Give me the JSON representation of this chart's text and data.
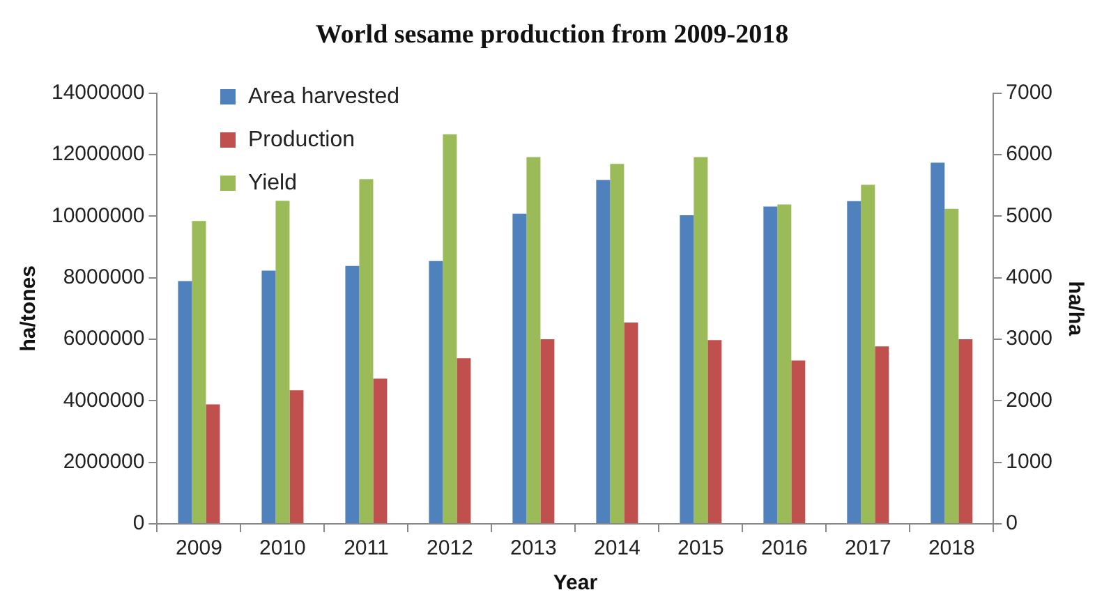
{
  "chart_data": {
    "type": "bar",
    "title": "World sesame production from 2009-2018",
    "xlabel": "Year",
    "ylabel": "ha/tones",
    "y2label": "ha/ha",
    "categories": [
      "2009",
      "2010",
      "2011",
      "2012",
      "2013",
      "2014",
      "2015",
      "2016",
      "2017",
      "2018"
    ],
    "series": [
      {
        "name": "Area harvested",
        "color": "#4f81bd",
        "values": [
          7890000,
          8230000,
          8380000,
          8540000,
          10080000,
          11180000,
          10030000,
          10310000,
          10490000,
          11740000
        ]
      },
      {
        "name": "Production",
        "color": "#c0504d",
        "values": [
          3880000,
          4340000,
          4720000,
          5380000,
          6000000,
          6540000,
          5970000,
          5310000,
          5770000,
          6000000
        ]
      },
      {
        "name": "Yield",
        "color": "#9bbb59",
        "axis": "y2",
        "values": [
          4920,
          5250,
          5600,
          6330,
          5960,
          5850,
          5960,
          5190,
          5510,
          5120
        ]
      }
    ],
    "ylim": [
      0,
      14000000
    ],
    "yticks": [
      0,
      2000000,
      4000000,
      6000000,
      8000000,
      10000000,
      12000000,
      14000000
    ],
    "y2lim": [
      0,
      7000
    ],
    "y2ticks": [
      0,
      1000,
      2000,
      3000,
      4000,
      5000,
      6000,
      7000
    ],
    "grid": false,
    "legend": "top left"
  }
}
